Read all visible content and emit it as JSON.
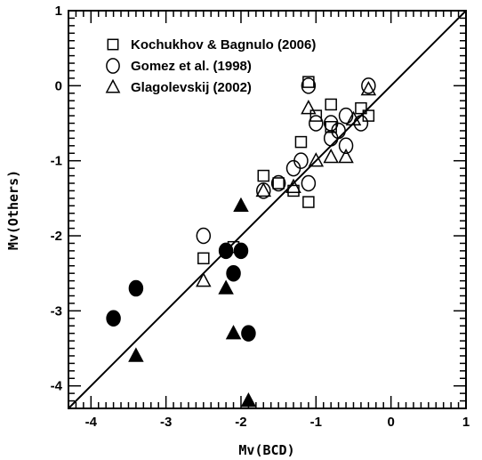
{
  "chart_data": {
    "type": "scatter",
    "title": "",
    "xlabel": "Mv(BCD)",
    "ylabel": "Mv(Others)",
    "xlim": [
      -4.3,
      1
    ],
    "ylim": [
      -4.3,
      1
    ],
    "x_ticks": [
      "-4",
      "-3",
      "-2",
      "-1",
      "0",
      "1"
    ],
    "y_ticks": [
      "-4",
      "-3",
      "-2",
      "-1",
      "0",
      "1"
    ],
    "grid": false,
    "legend_position": "top-left",
    "reference_line": {
      "type": "identity",
      "from": [
        -4.3,
        -4.3
      ],
      "to": [
        1,
        1
      ]
    },
    "series": [
      {
        "name": "Kochukhov & Bagnulo (2006)",
        "marker": "square-open",
        "points": [
          [
            -2.5,
            -2.3
          ],
          [
            -2.1,
            -2.15
          ],
          [
            -1.7,
            -1.2
          ],
          [
            -1.5,
            -1.3
          ],
          [
            -1.3,
            -1.4
          ],
          [
            -1.2,
            -0.75
          ],
          [
            -1.1,
            -1.55
          ],
          [
            -1.1,
            0.05
          ],
          [
            -1.0,
            -0.4
          ],
          [
            -0.8,
            -0.55
          ],
          [
            -0.8,
            -0.25
          ],
          [
            -0.4,
            -0.3
          ],
          [
            -0.3,
            -0.4
          ]
        ]
      },
      {
        "name": "Gomez et al. (1998)",
        "marker": "circle-open",
        "points": [
          [
            -2.5,
            -2.0
          ],
          [
            -1.7,
            -1.4
          ],
          [
            -1.5,
            -1.3
          ],
          [
            -1.3,
            -1.1
          ],
          [
            -1.2,
            -1.0
          ],
          [
            -1.1,
            -1.3
          ],
          [
            -1.1,
            0.0
          ],
          [
            -1.0,
            -0.5
          ],
          [
            -0.8,
            -0.5
          ],
          [
            -0.8,
            -0.7
          ],
          [
            -0.7,
            -0.6
          ],
          [
            -0.6,
            -0.8
          ],
          [
            -0.6,
            -0.4
          ],
          [
            -0.4,
            -0.5
          ],
          [
            -0.3,
            0.0
          ]
        ]
      },
      {
        "name": "Glagolevskij (2002)",
        "marker": "triangle-open",
        "points": [
          [
            -2.5,
            -2.6
          ],
          [
            -1.7,
            -1.4
          ],
          [
            -1.3,
            -1.35
          ],
          [
            -1.1,
            -0.3
          ],
          [
            -1.0,
            -1.0
          ],
          [
            -0.8,
            -0.95
          ],
          [
            -0.6,
            -0.95
          ],
          [
            -0.5,
            -0.45
          ],
          [
            -0.3,
            -0.05
          ]
        ]
      },
      {
        "name": "",
        "marker": "circle-filled",
        "points": [
          [
            -3.7,
            -3.1
          ],
          [
            -3.4,
            -2.7
          ],
          [
            -2.2,
            -2.2
          ],
          [
            -2.1,
            -2.5
          ],
          [
            -2.0,
            -2.2
          ],
          [
            -1.9,
            -3.3
          ]
        ]
      },
      {
        "name": "",
        "marker": "triangle-filled",
        "points": [
          [
            -3.4,
            -3.6
          ],
          [
            -2.2,
            -2.7
          ],
          [
            -2.1,
            -3.3
          ],
          [
            -2.0,
            -1.6
          ],
          [
            -1.9,
            -4.2
          ]
        ]
      }
    ]
  }
}
